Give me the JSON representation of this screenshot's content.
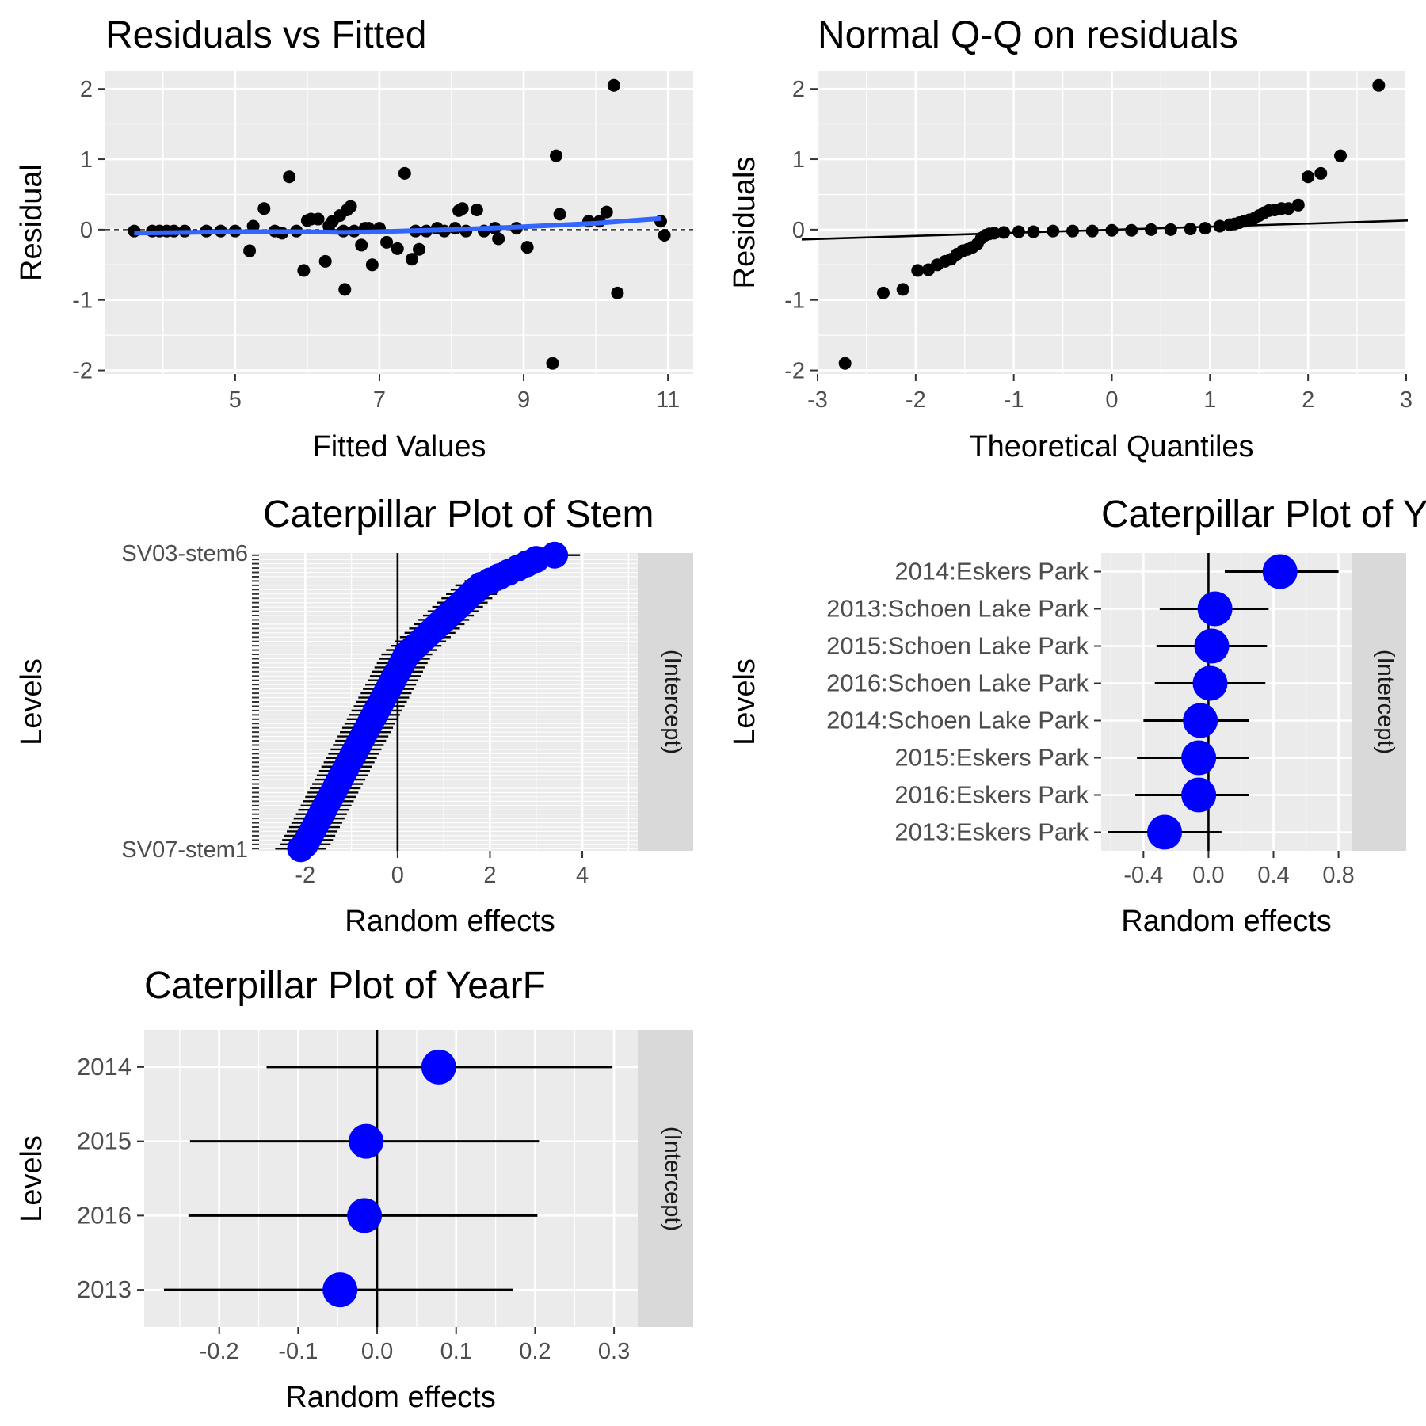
{
  "chart_data": [
    {
      "id": "resid",
      "type": "scatter",
      "title": "Residuals vs Fitted",
      "xlabel": "Fitted Values",
      "ylabel": "Residual",
      "xlim": [
        3.2,
        11.35
      ],
      "ylim": [
        -2.05,
        2.25
      ],
      "xticks": [
        5,
        7,
        9,
        11
      ],
      "yticks": [
        -2,
        -1,
        0,
        1,
        2
      ],
      "grid": true,
      "reference_line": {
        "y": 0,
        "style": "dashed"
      },
      "smooth_line": {
        "color": "#3366ff",
        "x": [
          3.6,
          5.0,
          6.0,
          6.5,
          7.0,
          8.0,
          9.0,
          10.0,
          10.9
        ],
        "y": [
          -0.05,
          -0.03,
          -0.03,
          -0.04,
          -0.03,
          0.0,
          0.04,
          0.09,
          0.16
        ]
      },
      "points": {
        "x": [
          3.6,
          3.85,
          3.95,
          4.05,
          4.15,
          4.3,
          4.6,
          4.8,
          5.0,
          5.2,
          5.25,
          5.4,
          5.55,
          5.65,
          5.75,
          5.85,
          5.95,
          6.0,
          6.05,
          6.15,
          6.25,
          6.3,
          6.35,
          6.45,
          6.5,
          6.52,
          6.55,
          6.6,
          6.65,
          6.75,
          6.8,
          6.85,
          6.9,
          7.0,
          7.1,
          7.25,
          7.35,
          7.45,
          7.5,
          7.55,
          7.65,
          7.8,
          7.9,
          8.05,
          8.1,
          8.15,
          8.2,
          8.35,
          8.45,
          8.6,
          8.65,
          8.9,
          9.05,
          9.4,
          9.45,
          9.5,
          9.9,
          10.05,
          10.15,
          10.25,
          10.3,
          10.9,
          10.95
        ],
        "y": [
          -0.02,
          -0.02,
          -0.02,
          -0.02,
          -0.02,
          -0.02,
          -0.02,
          -0.02,
          -0.02,
          -0.3,
          0.05,
          0.3,
          -0.02,
          -0.05,
          0.75,
          -0.02,
          -0.58,
          0.13,
          0.15,
          0.15,
          -0.45,
          0.05,
          0.12,
          0.2,
          -0.02,
          -0.85,
          0.28,
          0.33,
          -0.02,
          -0.22,
          0.02,
          0.02,
          -0.5,
          0.02,
          -0.18,
          -0.27,
          0.8,
          -0.42,
          -0.02,
          -0.28,
          -0.02,
          0.02,
          -0.02,
          0.02,
          0.27,
          0.3,
          -0.02,
          0.28,
          -0.02,
          0.02,
          -0.13,
          0.02,
          -0.25,
          -1.9,
          1.05,
          0.22,
          0.12,
          0.12,
          0.25,
          2.05,
          -0.9,
          0.12,
          -0.08
        ]
      }
    },
    {
      "id": "qq",
      "type": "scatter",
      "title": "Normal Q-Q on residuals",
      "xlabel": "Theoretical Quantiles",
      "ylabel": "Residuals",
      "xlim": [
        -3,
        3
      ],
      "ylim": [
        -2.05,
        2.25
      ],
      "xticks": [
        -3,
        -2,
        -1,
        0,
        1,
        2,
        3
      ],
      "yticks": [
        -2,
        -1,
        0,
        1,
        2
      ],
      "grid": true,
      "reference_line": {
        "x": [
          -3,
          3
        ],
        "y": [
          -0.13,
          0.13
        ]
      },
      "points": {
        "x": [
          -2.72,
          -2.33,
          -2.13,
          -1.98,
          -1.87,
          -1.78,
          -1.7,
          -1.64,
          -1.58,
          -1.52,
          -1.47,
          -1.42,
          -1.37,
          -1.33,
          -1.29,
          -1.25,
          -1.2,
          -1.1,
          -0.95,
          -0.8,
          -0.6,
          -0.4,
          -0.2,
          0.0,
          0.2,
          0.4,
          0.6,
          0.8,
          0.95,
          1.1,
          1.2,
          1.25,
          1.3,
          1.35,
          1.4,
          1.45,
          1.5,
          1.55,
          1.6,
          1.66,
          1.73,
          1.8,
          1.9,
          2.0,
          2.13,
          2.33,
          2.72
        ],
        "y": [
          -1.9,
          -0.9,
          -0.85,
          -0.58,
          -0.57,
          -0.5,
          -0.45,
          -0.42,
          -0.35,
          -0.3,
          -0.28,
          -0.25,
          -0.2,
          -0.12,
          -0.08,
          -0.06,
          -0.05,
          -0.04,
          -0.03,
          -0.03,
          -0.02,
          -0.02,
          -0.02,
          -0.01,
          -0.01,
          0.0,
          0.0,
          0.01,
          0.02,
          0.05,
          0.07,
          0.08,
          0.1,
          0.12,
          0.14,
          0.16,
          0.2,
          0.24,
          0.27,
          0.28,
          0.3,
          0.3,
          0.35,
          0.75,
          0.8,
          1.05,
          2.05
        ]
      }
    },
    {
      "id": "stem",
      "type": "scatter",
      "title": "Caterpillar Plot of  Stem",
      "xlabel": "Random effects",
      "ylabel": "Levels",
      "strip": "(Intercept)",
      "xlim": [
        -3.0,
        5.2
      ],
      "xticks": [
        -2,
        0,
        2,
        4
      ],
      "grid": true,
      "level_labels_note": "dense overlapping level labels; legible fragments",
      "level_labels": [
        "SV03-stem6",
        "SV07-stem1"
      ],
      "point_color": "#0000ff",
      "values": [
        -2.1,
        -2.0,
        -1.95,
        -1.9,
        -1.85,
        -1.8,
        -1.75,
        -1.7,
        -1.65,
        -1.6,
        -1.55,
        -1.5,
        -1.45,
        -1.4,
        -1.35,
        -1.3,
        -1.25,
        -1.2,
        -1.15,
        -1.1,
        -1.05,
        -1.0,
        -0.95,
        -0.9,
        -0.85,
        -0.8,
        -0.75,
        -0.7,
        -0.65,
        -0.6,
        -0.55,
        -0.5,
        -0.45,
        -0.4,
        -0.35,
        -0.3,
        -0.25,
        -0.2,
        -0.15,
        -0.1,
        -0.05,
        0.0,
        0.05,
        0.1,
        0.15,
        0.2,
        0.3,
        0.4,
        0.5,
        0.6,
        0.7,
        0.8,
        0.9,
        1.0,
        1.1,
        1.2,
        1.3,
        1.4,
        1.5,
        1.6,
        1.7,
        1.8,
        2.0,
        2.2,
        2.4,
        2.6,
        2.8,
        3.0,
        3.4
      ]
    },
    {
      "id": "yearpark",
      "type": "scatter",
      "title": "Caterpillar Plot of  YearF:Park",
      "xlabel": "Random effects",
      "ylabel": "Levels",
      "strip": "(Intercept)",
      "xlim": [
        -0.66,
        0.88
      ],
      "xticks": [
        -0.4,
        0.0,
        0.4,
        0.8
      ],
      "xtick_labels": [
        "-0.4",
        "0.0",
        "0.4",
        "0.8"
      ],
      "grid": true,
      "point_color": "#0000ff",
      "levels": [
        "2014:Eskers Park",
        "2013:Schoen Lake Park",
        "2015:Schoen Lake Park",
        "2016:Schoen Lake Park",
        "2014:Schoen Lake Park",
        "2015:Eskers Park",
        "2016:Eskers Park",
        "2013:Eskers Park"
      ],
      "values": [
        0.44,
        0.04,
        0.02,
        0.01,
        -0.05,
        -0.06,
        -0.06,
        -0.27
      ],
      "lower": [
        0.1,
        -0.3,
        -0.32,
        -0.33,
        -0.4,
        -0.44,
        -0.45,
        -0.62
      ],
      "upper": [
        0.8,
        0.37,
        0.36,
        0.35,
        0.25,
        0.25,
        0.25,
        0.08
      ]
    },
    {
      "id": "year",
      "type": "scatter",
      "title": "Caterpillar Plot of  YearF",
      "xlabel": "Random effects",
      "ylabel": "Levels",
      "strip": "(Intercept)",
      "xlim": [
        -0.295,
        0.33
      ],
      "xticks": [
        -0.2,
        -0.1,
        0.0,
        0.1,
        0.2,
        0.3
      ],
      "xtick_labels": [
        "-0.2",
        "-0.1",
        "0.0",
        "0.1",
        "0.2",
        "0.3"
      ],
      "grid": true,
      "point_color": "#0000ff",
      "levels": [
        "2014",
        "2015",
        "2016",
        "2013"
      ],
      "values": [
        0.078,
        -0.014,
        -0.016,
        -0.047
      ],
      "lower": [
        -0.14,
        -0.237,
        -0.239,
        -0.27
      ],
      "upper": [
        0.298,
        0.205,
        0.203,
        0.172
      ]
    }
  ]
}
